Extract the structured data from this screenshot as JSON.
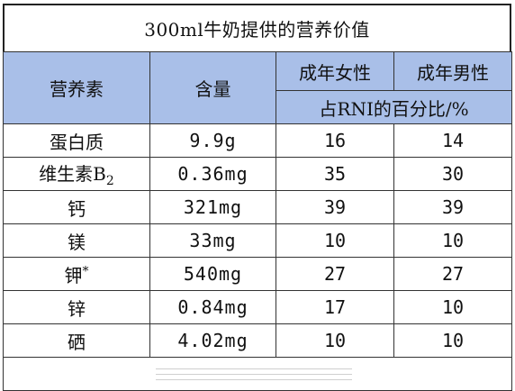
{
  "title": "300ml牛奶提供的营养价值",
  "headers": {
    "nutrient": "营养素",
    "amount": "含量",
    "adult_female": "成年女性",
    "adult_male": "成年男性",
    "rni_percent": "占RNI的百分比/%"
  },
  "rows": [
    {
      "nutrient": "蛋白质",
      "amount": "9.9g",
      "female": "16",
      "male": "14"
    },
    {
      "nutrient": "维生素B",
      "subscript": "2",
      "amount": "0.36mg",
      "female": "35",
      "male": "30"
    },
    {
      "nutrient": "钙",
      "amount": "321mg",
      "female": "39",
      "male": "39"
    },
    {
      "nutrient": "镁",
      "amount": "33mg",
      "female": "10",
      "male": "10"
    },
    {
      "nutrient": "钾",
      "superscript": "*",
      "amount": "540mg",
      "female": "27",
      "male": "27"
    },
    {
      "nutrient": "锌",
      "amount": "0.84mg",
      "female": "17",
      "male": "10"
    },
    {
      "nutrient": "硒",
      "amount": "4.02mg",
      "female": "10",
      "male": "10"
    }
  ],
  "colors": {
    "header_background": "#a9bfe8",
    "border": "#333333"
  }
}
